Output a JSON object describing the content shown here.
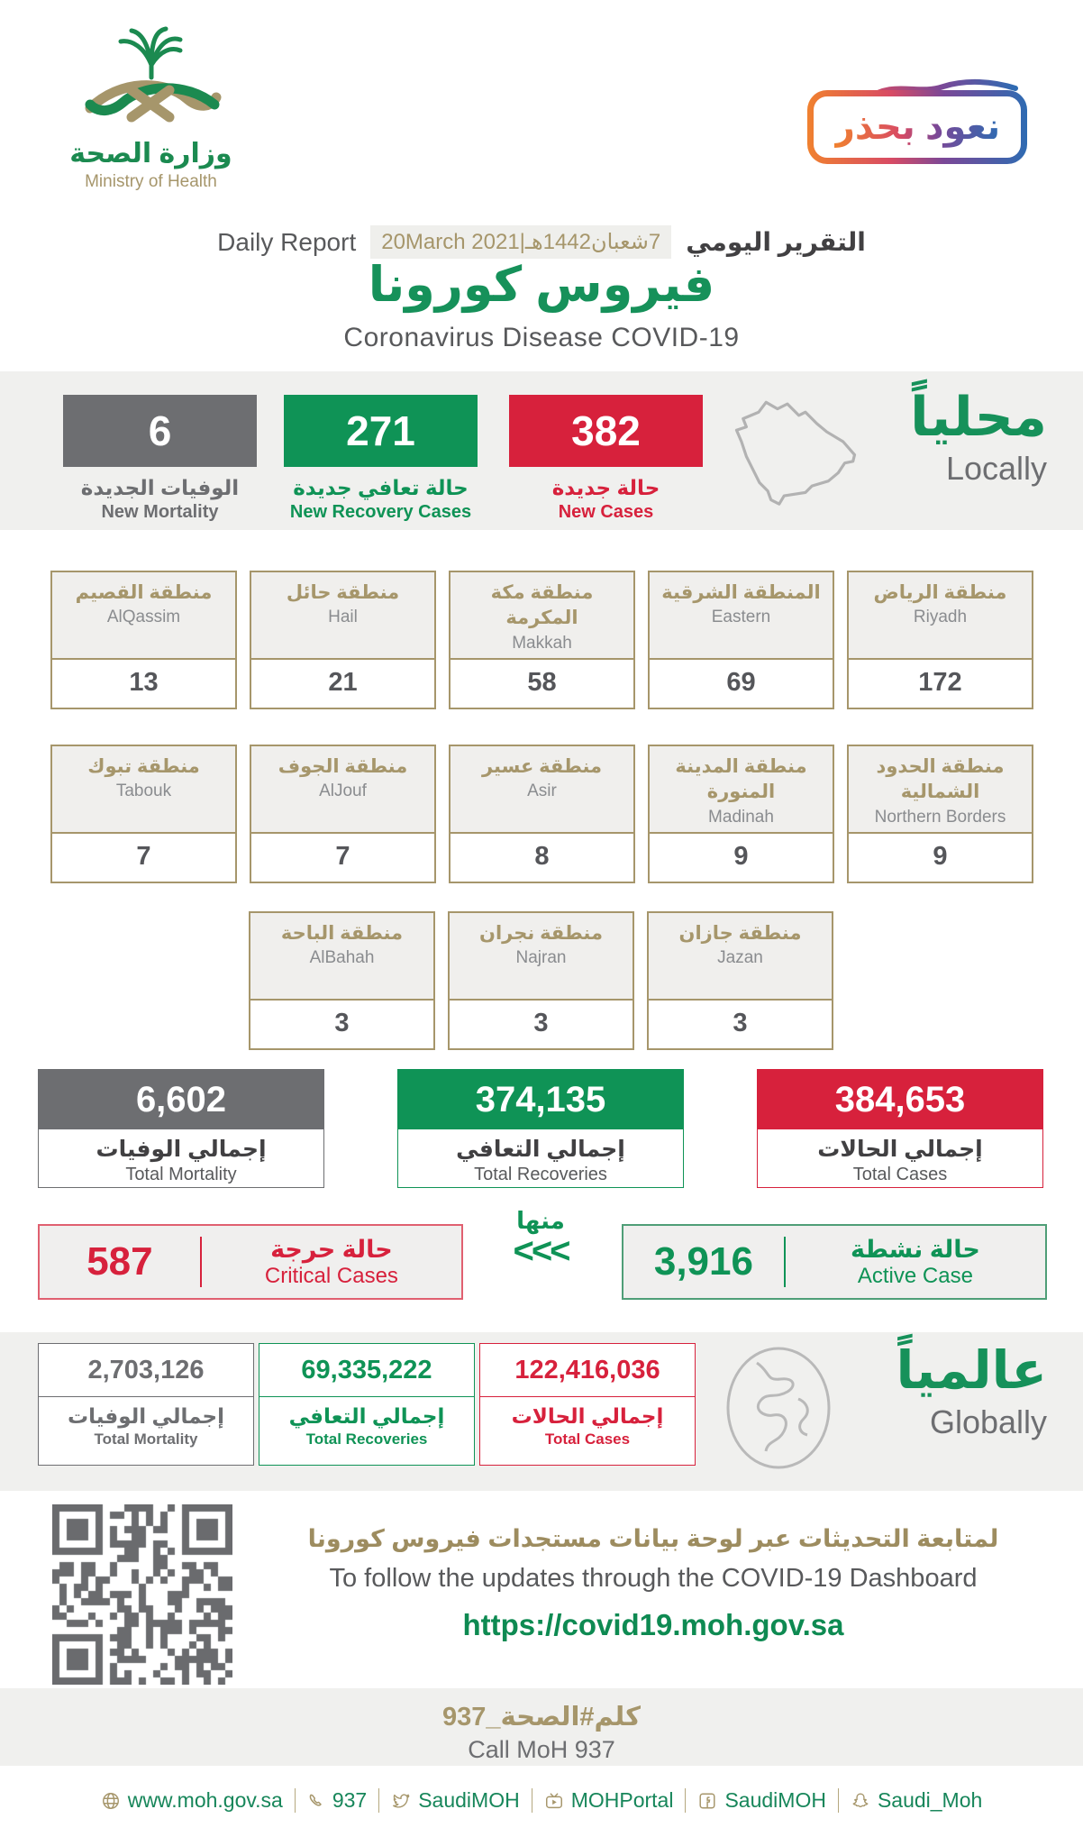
{
  "colors": {
    "green": "#0f9356",
    "red": "#d7213c",
    "gray": "#6d6e71",
    "gold": "#a6966b",
    "band_bg": "#f0f0ee",
    "badge_gradient": [
      "#f0812f",
      "#d84b64",
      "#7b4897",
      "#2e6bb2"
    ]
  },
  "header": {
    "logo": {
      "arabic": "وزارة الصحة",
      "english": "Ministry of Health"
    },
    "badge": {
      "text": "نعود بحذر"
    },
    "report": {
      "daily_report": "Daily Report",
      "gregorian_date": "20March 2021",
      "separator": "|",
      "hijri_date": "7شعبان1442هـ",
      "arabic_title": "التقرير اليومي"
    },
    "title_ar": "فيروس كورونا",
    "title_en": "Coronavirus Disease COVID-19"
  },
  "locally": {
    "heading_ar": "محلياً",
    "heading_en": "Locally",
    "stats": [
      {
        "value": "6",
        "label_ar": "الوفيات الجديدة",
        "label_en": "New Mortality",
        "color": "#6d6e71"
      },
      {
        "value": "271",
        "label_ar": "حالة تعافي جديدة",
        "label_en": "New Recovery Cases",
        "color": "#0f9356"
      },
      {
        "value": "382",
        "label_ar": "حالة جديدة",
        "label_en": "New Cases",
        "color": "#d7213c"
      }
    ]
  },
  "regions": {
    "row1": [
      {
        "name_ar": "منطقة القصيم",
        "name_en": "AlQassim",
        "value": "13"
      },
      {
        "name_ar": "منطقة حائل",
        "name_en": "Hail",
        "value": "21"
      },
      {
        "name_ar": "منطقة مكة المكرمة",
        "name_en": "Makkah",
        "value": "58"
      },
      {
        "name_ar": "المنطقة الشرقية",
        "name_en": "Eastern",
        "value": "69"
      },
      {
        "name_ar": "منطقة الرياض",
        "name_en": "Riyadh",
        "value": "172"
      }
    ],
    "row2": [
      {
        "name_ar": "منطقة تبوك",
        "name_en": "Tabouk",
        "value": "7"
      },
      {
        "name_ar": "منطقة الجوف",
        "name_en": "AlJouf",
        "value": "7"
      },
      {
        "name_ar": "منطقة عسير",
        "name_en": "Asir",
        "value": "8"
      },
      {
        "name_ar": "منطقة المدينة المنورة",
        "name_en": "Madinah",
        "value": "9"
      },
      {
        "name_ar": "منطقة الحدود الشمالية",
        "name_en": "Northern Borders",
        "value": "9"
      }
    ],
    "row3": [
      {
        "name_ar": "منطقة الباحة",
        "name_en": "AlBahah",
        "value": "3"
      },
      {
        "name_ar": "منطقة نجران",
        "name_en": "Najran",
        "value": "3"
      },
      {
        "name_ar": "منطقة جازان",
        "name_en": "Jazan",
        "value": "3"
      }
    ]
  },
  "totals": [
    {
      "value": "6,602",
      "label_ar": "إجمالي الوفيات",
      "label_en": "Total Mortality",
      "color": "#6d6e71"
    },
    {
      "value": "374,135",
      "label_ar": "إجمالي التعافي",
      "label_en": "Total Recoveries",
      "color": "#0f9356"
    },
    {
      "value": "384,653",
      "label_ar": "إجمالي الحالات",
      "label_en": "Total Cases",
      "color": "#d7213c"
    }
  ],
  "critical_active": {
    "critical": {
      "value": "587",
      "label_ar": "حالة حرجة",
      "label_en": "Critical Cases"
    },
    "of_which_ar": "منها",
    "arrows": "<<<",
    "active": {
      "value": "3,916",
      "label_ar": "حالة نشطة",
      "label_en": "Active Case"
    }
  },
  "globally": {
    "heading_ar": "عالمياً",
    "heading_en": "Globally",
    "stats": [
      {
        "value": "2,703,126",
        "label_ar": "إجمالي الوفيات",
        "label_en": "Total Mortality",
        "color": "#6d6e71"
      },
      {
        "value": "69,335,222",
        "label_ar": "إجمالي التعافي",
        "label_en": "Total Recoveries",
        "color": "#0f9356"
      },
      {
        "value": "122,416,036",
        "label_ar": "إجمالي الحالات",
        "label_en": "Total Cases",
        "color": "#d7213c"
      }
    ]
  },
  "dashboard": {
    "line_ar": "لمتابعة التحديثات عبر لوحة بيانات مستجدات فيروس كورونا",
    "line_en": "To follow the updates through the COVID-19 Dashboard",
    "url": "https://covid19.moh.gov.sa"
  },
  "call": {
    "ar": "كلم#الصحة_937",
    "en": "Call MoH 937"
  },
  "footer": {
    "items": [
      {
        "icon": "globe-icon",
        "text": "www.moh.gov.sa"
      },
      {
        "icon": "phone-icon",
        "text": "937"
      },
      {
        "icon": "twitter-icon",
        "text": "SaudiMOH"
      },
      {
        "icon": "youtube-icon",
        "text": "MOHPortal"
      },
      {
        "icon": "facebook-icon",
        "text": "SaudiMOH"
      },
      {
        "icon": "snapchat-icon",
        "text": "Saudi_Moh"
      }
    ]
  }
}
